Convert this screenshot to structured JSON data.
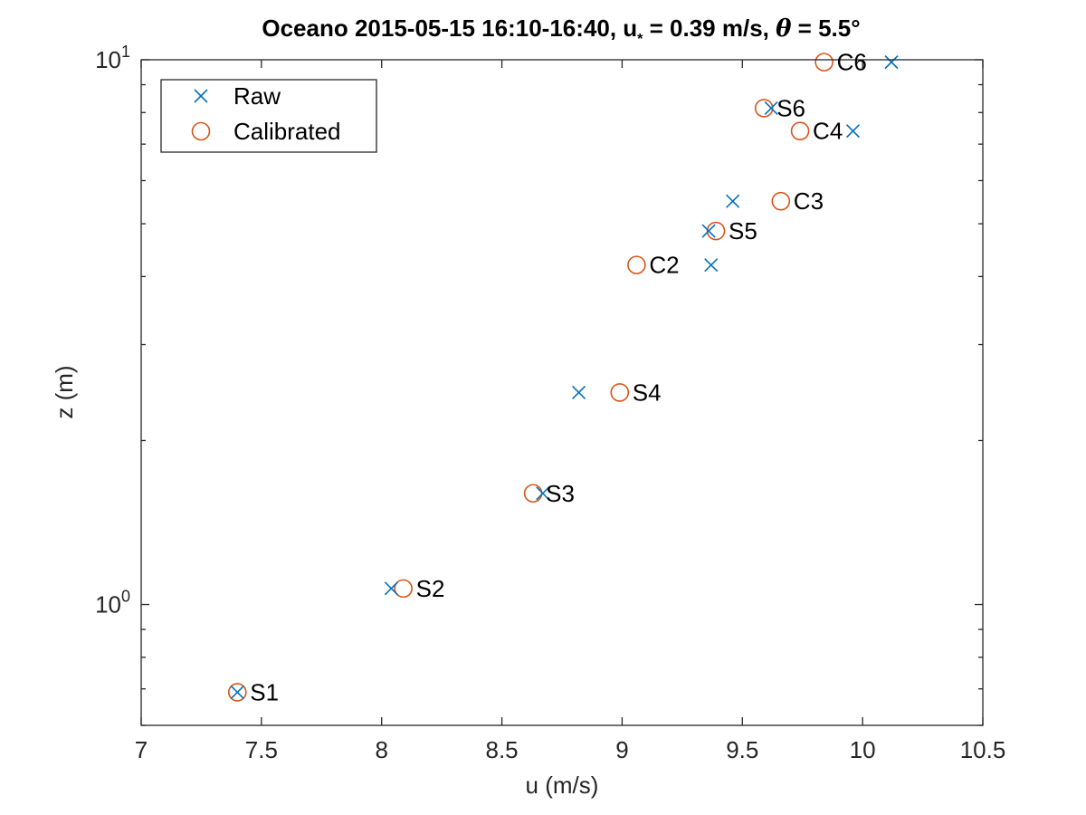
{
  "chart_data": {
    "type": "scatter",
    "title": "Oceano 2015-05-15 16:10-16:40, u",
    "title_sub": "*",
    "title_mid": " = 0.39 m/s, ",
    "title_theta": "θ",
    "title_end": " = 5.5°",
    "xlabel": "u (m/s)",
    "ylabel": "z (m)",
    "xlim": [
      7,
      10.5
    ],
    "ylim": [
      0.6,
      10
    ],
    "yscale": "log",
    "grid": false,
    "legend_position": "top-left",
    "x_ticks": [
      "7",
      "7.5",
      "8",
      "8.5",
      "9",
      "9.5",
      "10",
      "10.5"
    ],
    "y_ticks": [
      {
        "base": "10",
        "exp": "0",
        "value": 1
      },
      {
        "base": "10",
        "exp": "1",
        "value": 10
      }
    ],
    "series": [
      {
        "name": "Raw",
        "marker": "x",
        "color": "#0072BD",
        "points": [
          {
            "x": 7.4,
            "z": 0.69
          },
          {
            "x": 8.04,
            "z": 1.07
          },
          {
            "x": 8.67,
            "z": 1.6
          },
          {
            "x": 8.82,
            "z": 2.45
          },
          {
            "x": 9.37,
            "z": 4.2
          },
          {
            "x": 9.36,
            "z": 4.85
          },
          {
            "x": 9.46,
            "z": 5.5
          },
          {
            "x": 9.62,
            "z": 8.15
          },
          {
            "x": 9.96,
            "z": 7.4
          },
          {
            "x": 10.12,
            "z": 9.9
          }
        ]
      },
      {
        "name": "Calibrated",
        "marker": "o",
        "color": "#D95319",
        "points": [
          {
            "x": 7.4,
            "z": 0.69,
            "label": "S1"
          },
          {
            "x": 8.09,
            "z": 1.07,
            "label": "S2"
          },
          {
            "x": 8.63,
            "z": 1.6,
            "label": "S3"
          },
          {
            "x": 8.99,
            "z": 2.45,
            "label": "S4"
          },
          {
            "x": 9.06,
            "z": 4.2,
            "label": "C2"
          },
          {
            "x": 9.39,
            "z": 4.85,
            "label": "S5"
          },
          {
            "x": 9.66,
            "z": 5.5,
            "label": "C3"
          },
          {
            "x": 9.74,
            "z": 7.4,
            "label": "C4"
          },
          {
            "x": 9.59,
            "z": 8.15,
            "label": "S6"
          },
          {
            "x": 9.84,
            "z": 9.9,
            "label": "C6"
          }
        ]
      }
    ]
  }
}
